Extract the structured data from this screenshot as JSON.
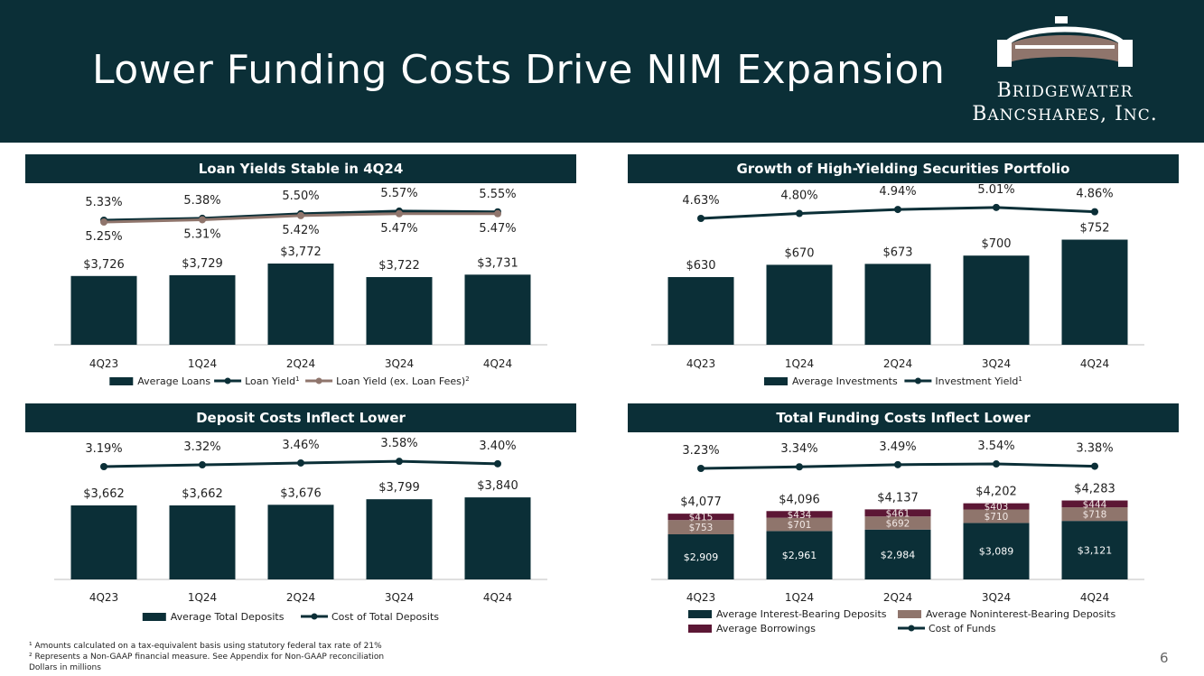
{
  "title": "Lower Funding Costs Drive NIM Expansion",
  "logo": {
    "line1": "Bridgewater",
    "line2": "Bancshares, Inc.",
    "icon": "bridge-logo-icon"
  },
  "colors": {
    "dark": "#0b2f37",
    "taupe": "#8f756c",
    "maroon": "#5c1735",
    "text": "#222222"
  },
  "page_number": "6",
  "footnotes": [
    "¹ Amounts calculated on a tax-equivalent basis using statutory federal tax rate of 21%",
    "² Represents a Non-GAAP financial measure. See Appendix for Non-GAAP reconciliation",
    "Dollars in millions"
  ],
  "panels": [
    {
      "title": "Loan Yields Stable in 4Q24"
    },
    {
      "title": "Growth of High-Yielding Securities Portfolio"
    },
    {
      "title": "Deposit Costs Inflect Lower"
    },
    {
      "title": "Total Funding Costs Inflect Lower"
    }
  ],
  "chart_data": [
    {
      "type": "bar",
      "title": "Loan Yields Stable in 4Q24",
      "categories": [
        "4Q23",
        "1Q24",
        "2Q24",
        "3Q24",
        "4Q24"
      ],
      "bars": {
        "name": "Average Loans",
        "values": [
          3726,
          3729,
          3772,
          3722,
          3731
        ],
        "labels": [
          "$3,726",
          "$3,729",
          "$3,772",
          "$3,722",
          "$3,731"
        ]
      },
      "lines": [
        {
          "name": "Loan Yield",
          "sup": "1",
          "values": [
            5.33,
            5.38,
            5.5,
            5.57,
            5.55
          ],
          "labels": [
            "5.33%",
            "5.38%",
            "5.50%",
            "5.57%",
            "5.55%"
          ],
          "color": "#0b2f37",
          "label_pos": "above"
        },
        {
          "name": "Loan Yield (ex. Loan Fees)",
          "sup": "2",
          "values": [
            5.25,
            5.31,
            5.42,
            5.47,
            5.47
          ],
          "labels": [
            "5.25%",
            "5.31%",
            "5.42%",
            "5.47%",
            "5.47%"
          ],
          "color": "#8f756c",
          "label_pos": "below"
        }
      ],
      "legend": "bottom"
    },
    {
      "type": "bar",
      "title": "Growth of High-Yielding Securities Portfolio",
      "categories": [
        "4Q23",
        "1Q24",
        "2Q24",
        "3Q24",
        "4Q24"
      ],
      "bars": {
        "name": "Average Investments",
        "values": [
          630,
          670,
          673,
          700,
          752
        ],
        "labels": [
          "$630",
          "$670",
          "$673",
          "$700",
          "$752"
        ]
      },
      "lines": [
        {
          "name": "Investment Yield",
          "sup": "1",
          "values": [
            4.63,
            4.8,
            4.94,
            5.01,
            4.86
          ],
          "labels": [
            "4.63%",
            "4.80%",
            "4.94%",
            "5.01%",
            "4.86%"
          ],
          "color": "#0b2f37",
          "label_pos": "above"
        }
      ],
      "legend": "bottom"
    },
    {
      "type": "bar",
      "title": "Deposit Costs Inflect Lower",
      "categories": [
        "4Q23",
        "1Q24",
        "2Q24",
        "3Q24",
        "4Q24"
      ],
      "bars": {
        "name": "Average Total Deposits",
        "values": [
          3662,
          3662,
          3676,
          3799,
          3840
        ],
        "labels": [
          "$3,662",
          "$3,662",
          "$3,676",
          "$3,799",
          "$3,840"
        ]
      },
      "lines": [
        {
          "name": "Cost of Total Deposits",
          "sup": "",
          "values": [
            3.19,
            3.32,
            3.46,
            3.58,
            3.4
          ],
          "labels": [
            "3.19%",
            "3.32%",
            "3.46%",
            "3.58%",
            "3.40%"
          ],
          "color": "#0b2f37",
          "label_pos": "above"
        }
      ],
      "legend": "bottom"
    },
    {
      "type": "bar",
      "title": "Total Funding Costs Inflect Lower",
      "categories": [
        "4Q23",
        "1Q24",
        "2Q24",
        "3Q24",
        "4Q24"
      ],
      "stacked": [
        {
          "name": "Average Interest-Bearing Deposits",
          "color": "#0b2f37",
          "values": [
            2909,
            2961,
            2984,
            3089,
            3121
          ],
          "labels": [
            "$2,909",
            "$2,961",
            "$2,984",
            "$3,089",
            "$3,121"
          ]
        },
        {
          "name": "Average Noninterest-Bearing Deposits",
          "color": "#8f756c",
          "values": [
            753,
            701,
            692,
            710,
            718
          ],
          "labels": [
            "$753",
            "$701",
            "$692",
            "$710",
            "$718"
          ]
        },
        {
          "name": "Average Borrowings",
          "color": "#5c1735",
          "values": [
            415,
            434,
            461,
            403,
            444
          ],
          "labels": [
            "$415",
            "$434",
            "$461",
            "$403",
            "$444"
          ]
        }
      ],
      "totals": [
        "$4,077",
        "$4,096",
        "$4,137",
        "$4,202",
        "$4,283"
      ],
      "lines": [
        {
          "name": "Cost of Funds",
          "sup": "",
          "values": [
            3.23,
            3.34,
            3.49,
            3.54,
            3.38
          ],
          "labels": [
            "3.23%",
            "3.34%",
            "3.49%",
            "3.54%",
            "3.38%"
          ],
          "color": "#0b2f37",
          "label_pos": "above"
        }
      ],
      "legend": "bottom"
    }
  ]
}
